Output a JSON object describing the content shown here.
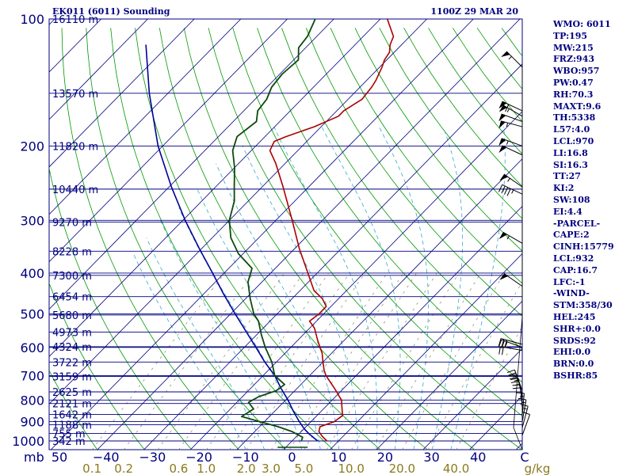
{
  "header": {
    "station": "EK011 (6011) Sounding",
    "time": "1100Z 29 MAR 20"
  },
  "stats": [
    "WMO: 6011",
    "TP:195",
    "MW:215",
    "FRZ:943",
    "WBO:957",
    "PW:0.47",
    "RH:70.3",
    "MAXT:9.6",
    "TH:5338",
    "L57:4.0",
    "LCL:970",
    "LI:16.8",
    "SI:16.3",
    "TT:27",
    "KI:2",
    "SW:108",
    "EI:4.4",
    "-PARCEL-",
    "CAPE:2",
    "CINH:15779",
    "LCL:932",
    "CAP:16.7",
    "LFC:-1",
    "-WIND-",
    "STM:358/30",
    "HEL:245",
    "SHR+:0.0",
    "SRDS:92",
    "EHI:0.0",
    "BRN:0.0",
    "BSHR:85"
  ],
  "colors": {
    "temperature": "#aa0000",
    "dewpoint": "#0b4a0b",
    "parcel": "#00009a",
    "isobar": "#00007f",
    "isotherm": "#00007f",
    "dry_adiabat": "#009900",
    "moist_adiabat": "#33aacc",
    "mixing_ratio": "#888866",
    "wind": "#000000"
  },
  "chart_data": {
    "type": "line",
    "title": "EK011 (6011) Sounding",
    "xlabel": "",
    "ylabel": "",
    "pressure_unit": "mb",
    "mixing_ratio_unit": "g/kg",
    "y_scale": "log",
    "ylim": [
      1050,
      100
    ],
    "xlim": [
      -50,
      50
    ],
    "pressure_ticks": [
      100,
      200,
      300,
      400,
      500,
      600,
      700,
      800,
      900,
      1000
    ],
    "temperature_ticks": [
      -50,
      -40,
      -30,
      -20,
      -10,
      0,
      10,
      20,
      30,
      40,
      50
    ],
    "temperature_tick_labels": [
      "50",
      "−40",
      "−30",
      "−20",
      "−10",
      "0",
      "10",
      "20",
      "30",
      "40",
      "C"
    ],
    "mixing_ratio_ticks": [
      0.1,
      0.2,
      0.6,
      1.0,
      2.0,
      3.0,
      5.0,
      10.0,
      20.0,
      40.0
    ],
    "mixing_ratio_tick_labels": [
      "0.1",
      "0.2",
      "0.6",
      "1.0",
      "2.0",
      "3.0",
      "5.0",
      "10.0",
      "20.0",
      "40.0"
    ],
    "height_labels": [
      {
        "p": 1000,
        "label": "342 m"
      },
      {
        "p": 960,
        "label": "755 m"
      },
      {
        "p": 915,
        "label": "1188 m"
      },
      {
        "p": 865,
        "label": "1642 m"
      },
      {
        "p": 815,
        "label": "2121 m"
      },
      {
        "p": 765,
        "label": "2625 m"
      },
      {
        "p": 703,
        "label": "3159 m"
      },
      {
        "p": 650,
        "label": "3722 m"
      },
      {
        "p": 598,
        "label": "4324 m"
      },
      {
        "p": 552,
        "label": "4973 m"
      },
      {
        "p": 503,
        "label": "5680 m"
      },
      {
        "p": 455,
        "label": "6454 m"
      },
      {
        "p": 405,
        "label": "7300 m"
      },
      {
        "p": 355,
        "label": "8228 m"
      },
      {
        "p": 303,
        "label": "9270 m"
      },
      {
        "p": 253,
        "label": "10440 m"
      },
      {
        "p": 200,
        "label": "11820 m"
      },
      {
        "p": 150,
        "label": "13570 m"
      },
      {
        "p": 100,
        "label": "16110 m"
      }
    ],
    "temperature_profile": [
      {
        "p": 1000,
        "t": 7.5
      },
      {
        "p": 975,
        "t": 5.5
      },
      {
        "p": 950,
        "t": 3.8
      },
      {
        "p": 925,
        "t": 3.0
      },
      {
        "p": 900,
        "t": 5.0
      },
      {
        "p": 870,
        "t": 5.5
      },
      {
        "p": 850,
        "t": 4.5
      },
      {
        "p": 800,
        "t": 2.0
      },
      {
        "p": 750,
        "t": -2.0
      },
      {
        "p": 700,
        "t": -6.5
      },
      {
        "p": 680,
        "t": -8.0
      },
      {
        "p": 650,
        "t": -10.0
      },
      {
        "p": 620,
        "t": -12.0
      },
      {
        "p": 580,
        "t": -15.5
      },
      {
        "p": 540,
        "t": -19.0
      },
      {
        "p": 520,
        "t": -21.5
      },
      {
        "p": 500,
        "t": -21.0
      },
      {
        "p": 480,
        "t": -21.0
      },
      {
        "p": 460,
        "t": -23.5
      },
      {
        "p": 440,
        "t": -27.0
      },
      {
        "p": 400,
        "t": -32.0
      },
      {
        "p": 350,
        "t": -39.0
      },
      {
        "p": 300,
        "t": -46.5
      },
      {
        "p": 250,
        "t": -55.5
      },
      {
        "p": 220,
        "t": -62.0
      },
      {
        "p": 205,
        "t": -66.0
      },
      {
        "p": 195,
        "t": -67.0
      },
      {
        "p": 190,
        "t": -65.5
      },
      {
        "p": 180,
        "t": -61.5
      },
      {
        "p": 170,
        "t": -58.5
      },
      {
        "p": 165,
        "t": -58.5
      },
      {
        "p": 155,
        "t": -57.0
      },
      {
        "p": 145,
        "t": -57.5
      },
      {
        "p": 140,
        "t": -58.0
      },
      {
        "p": 130,
        "t": -59.5
      },
      {
        "p": 125,
        "t": -60.5
      },
      {
        "p": 120,
        "t": -61.0
      },
      {
        "p": 115,
        "t": -62.5
      },
      {
        "p": 110,
        "t": -63.5
      },
      {
        "p": 100,
        "t": -68.5
      }
    ],
    "dewpoint_profile": [
      {
        "p": 1000,
        "t": 2.0
      },
      {
        "p": 980,
        "t": 1.5
      },
      {
        "p": 950,
        "t": -2.0
      },
      {
        "p": 925,
        "t": -6.0
      },
      {
        "p": 900,
        "t": -11.0
      },
      {
        "p": 875,
        "t": -16.0
      },
      {
        "p": 840,
        "t": -15.0
      },
      {
        "p": 810,
        "t": -17.5
      },
      {
        "p": 785,
        "t": -16.5
      },
      {
        "p": 760,
        "t": -14.0
      },
      {
        "p": 735,
        "t": -13.5
      },
      {
        "p": 700,
        "t": -17.5
      },
      {
        "p": 650,
        "t": -21.0
      },
      {
        "p": 600,
        "t": -25.5
      },
      {
        "p": 560,
        "t": -29.0
      },
      {
        "p": 520,
        "t": -32.5
      },
      {
        "p": 500,
        "t": -35.0
      },
      {
        "p": 460,
        "t": -39.0
      },
      {
        "p": 420,
        "t": -43.0
      },
      {
        "p": 390,
        "t": -45.0
      },
      {
        "p": 360,
        "t": -51.0
      },
      {
        "p": 330,
        "t": -56.0
      },
      {
        "p": 300,
        "t": -60.0
      },
      {
        "p": 270,
        "t": -63.0
      },
      {
        "p": 250,
        "t": -66.0
      },
      {
        "p": 225,
        "t": -70.0
      },
      {
        "p": 205,
        "t": -74.0
      },
      {
        "p": 190,
        "t": -76.0
      },
      {
        "p": 175,
        "t": -75.0
      },
      {
        "p": 165,
        "t": -77.0
      },
      {
        "p": 155,
        "t": -77.5
      },
      {
        "p": 145,
        "t": -79.0
      },
      {
        "p": 135,
        "t": -79.5
      },
      {
        "p": 125,
        "t": -79.0
      },
      {
        "p": 117,
        "t": -81.5
      },
      {
        "p": 110,
        "t": -82.0
      },
      {
        "p": 100,
        "t": -84.0
      }
    ],
    "parcel_profile": [
      {
        "p": 1000,
        "t": 5.5
      },
      {
        "p": 960,
        "t": 2.0
      },
      {
        "p": 935,
        "t": 0.0
      },
      {
        "p": 900,
        "t": -2.5
      },
      {
        "p": 850,
        "t": -6.0
      },
      {
        "p": 800,
        "t": -9.5
      },
      {
        "p": 750,
        "t": -13.5
      },
      {
        "p": 700,
        "t": -17.5
      },
      {
        "p": 650,
        "t": -22.5
      },
      {
        "p": 600,
        "t": -27.5
      },
      {
        "p": 550,
        "t": -33.0
      },
      {
        "p": 500,
        "t": -39.0
      },
      {
        "p": 450,
        "t": -45.5
      },
      {
        "p": 400,
        "t": -52.5
      },
      {
        "p": 350,
        "t": -60.5
      },
      {
        "p": 300,
        "t": -69.5
      },
      {
        "p": 250,
        "t": -79.5
      },
      {
        "p": 200,
        "t": -91.0
      },
      {
        "p": 150,
        "t": -104.0
      },
      {
        "p": 115,
        "t": -115.0
      }
    ],
    "wind_barbs": [
      {
        "p": 130,
        "dir": 315,
        "kt": 55
      },
      {
        "p": 165,
        "dir": 295,
        "kt": 60
      },
      {
        "p": 170,
        "dir": 300,
        "kt": 55
      },
      {
        "p": 175,
        "dir": 290,
        "kt": 50
      },
      {
        "p": 180,
        "dir": 285,
        "kt": 55
      },
      {
        "p": 200,
        "dir": 290,
        "kt": 55
      },
      {
        "p": 210,
        "dir": 295,
        "kt": 50
      },
      {
        "p": 250,
        "dir": 305,
        "kt": 55
      },
      {
        "p": 260,
        "dir": 295,
        "kt": 45
      },
      {
        "p": 340,
        "dir": 300,
        "kt": 55
      },
      {
        "p": 430,
        "dir": 305,
        "kt": 50
      },
      {
        "p": 590,
        "dir": 285,
        "kt": 30
      },
      {
        "p": 600,
        "dir": 290,
        "kt": 25
      },
      {
        "p": 610,
        "dir": 280,
        "kt": 20
      },
      {
        "p": 760,
        "dir": 340,
        "kt": 25
      },
      {
        "p": 780,
        "dir": 345,
        "kt": 25
      },
      {
        "p": 800,
        "dir": 350,
        "kt": 25
      },
      {
        "p": 830,
        "dir": 355,
        "kt": 20
      },
      {
        "p": 870,
        "dir": 5,
        "kt": 15
      },
      {
        "p": 900,
        "dir": 10,
        "kt": 15
      },
      {
        "p": 930,
        "dir": 15,
        "kt": 15
      },
      {
        "p": 970,
        "dir": 20,
        "kt": 10
      }
    ]
  }
}
